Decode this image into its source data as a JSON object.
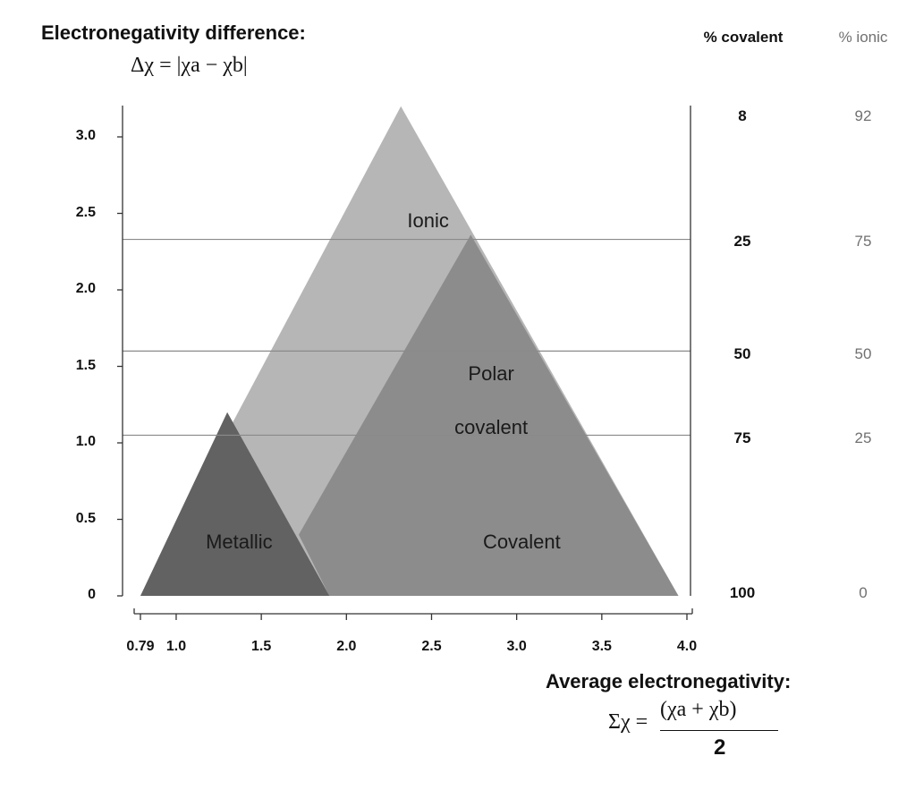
{
  "titles": {
    "y_title": "Electronegativity difference:",
    "y_formula": "Δχ = |χa − χb|",
    "x_title": "Average electronegativity:",
    "x_formula_numerator": "(χa + χb)",
    "x_formula_lhs": "Σχ =",
    "x_formula_denominator": "2"
  },
  "headers": {
    "covalent": "% covalent",
    "ionic": "% ionic"
  },
  "percent_rows": [
    {
      "delta": 3.2,
      "covalent": "8",
      "ionic": "92"
    },
    {
      "delta": 2.33,
      "covalent": "25",
      "ionic": "75"
    },
    {
      "delta": 1.6,
      "covalent": "50",
      "ionic": "50"
    },
    {
      "delta": 1.05,
      "covalent": "75",
      "ionic": "25"
    },
    {
      "delta": 0,
      "covalent": "100",
      "ionic": "0"
    }
  ],
  "gridlines_delta": [
    2.33,
    1.6,
    1.05
  ],
  "colors": {
    "ionic": "#b6b6b6",
    "polar_covalent": "#8c8c8c",
    "metallic": "#626262",
    "axis": "#333333",
    "grid": "#8a8a8a"
  },
  "chart_data": {
    "type": "diagram",
    "x_axis": {
      "label": "Average electronegativity",
      "ticks": [
        "0.79",
        "1.0",
        "1.5",
        "2.0",
        "2.5",
        "3.0",
        "3.5",
        "4.0"
      ],
      "range": [
        0.79,
        4.0
      ]
    },
    "y_axis": {
      "label": "Electronegativity difference",
      "ticks": [
        "0",
        "0.5",
        "1.0",
        "1.5",
        "2.0",
        "2.5",
        "3.0"
      ],
      "range": [
        0,
        3.2
      ]
    },
    "regions": [
      {
        "name": "Ionic",
        "polygon": [
          [
            0.79,
            0
          ],
          [
            2.32,
            3.2
          ],
          [
            3.95,
            0
          ]
        ]
      },
      {
        "name": "Polar covalent",
        "polygon": [
          [
            1.72,
            0.4
          ],
          [
            2.73,
            2.36
          ],
          [
            3.95,
            0
          ],
          [
            1.9,
            0
          ]
        ]
      },
      {
        "name": "Metallic",
        "polygon": [
          [
            0.79,
            0
          ],
          [
            1.3,
            1.2
          ],
          [
            1.9,
            0
          ]
        ]
      }
    ],
    "region_labels": [
      {
        "text": "Ionic",
        "at": [
          2.48,
          2.45
        ]
      },
      {
        "text": "Polar",
        "at": [
          2.85,
          1.45
        ]
      },
      {
        "text": "covalent",
        "at": [
          2.85,
          1.1
        ]
      },
      {
        "text": "Metallic",
        "at": [
          1.37,
          0.35
        ]
      },
      {
        "text": "Covalent",
        "at": [
          3.03,
          0.35
        ]
      }
    ]
  }
}
